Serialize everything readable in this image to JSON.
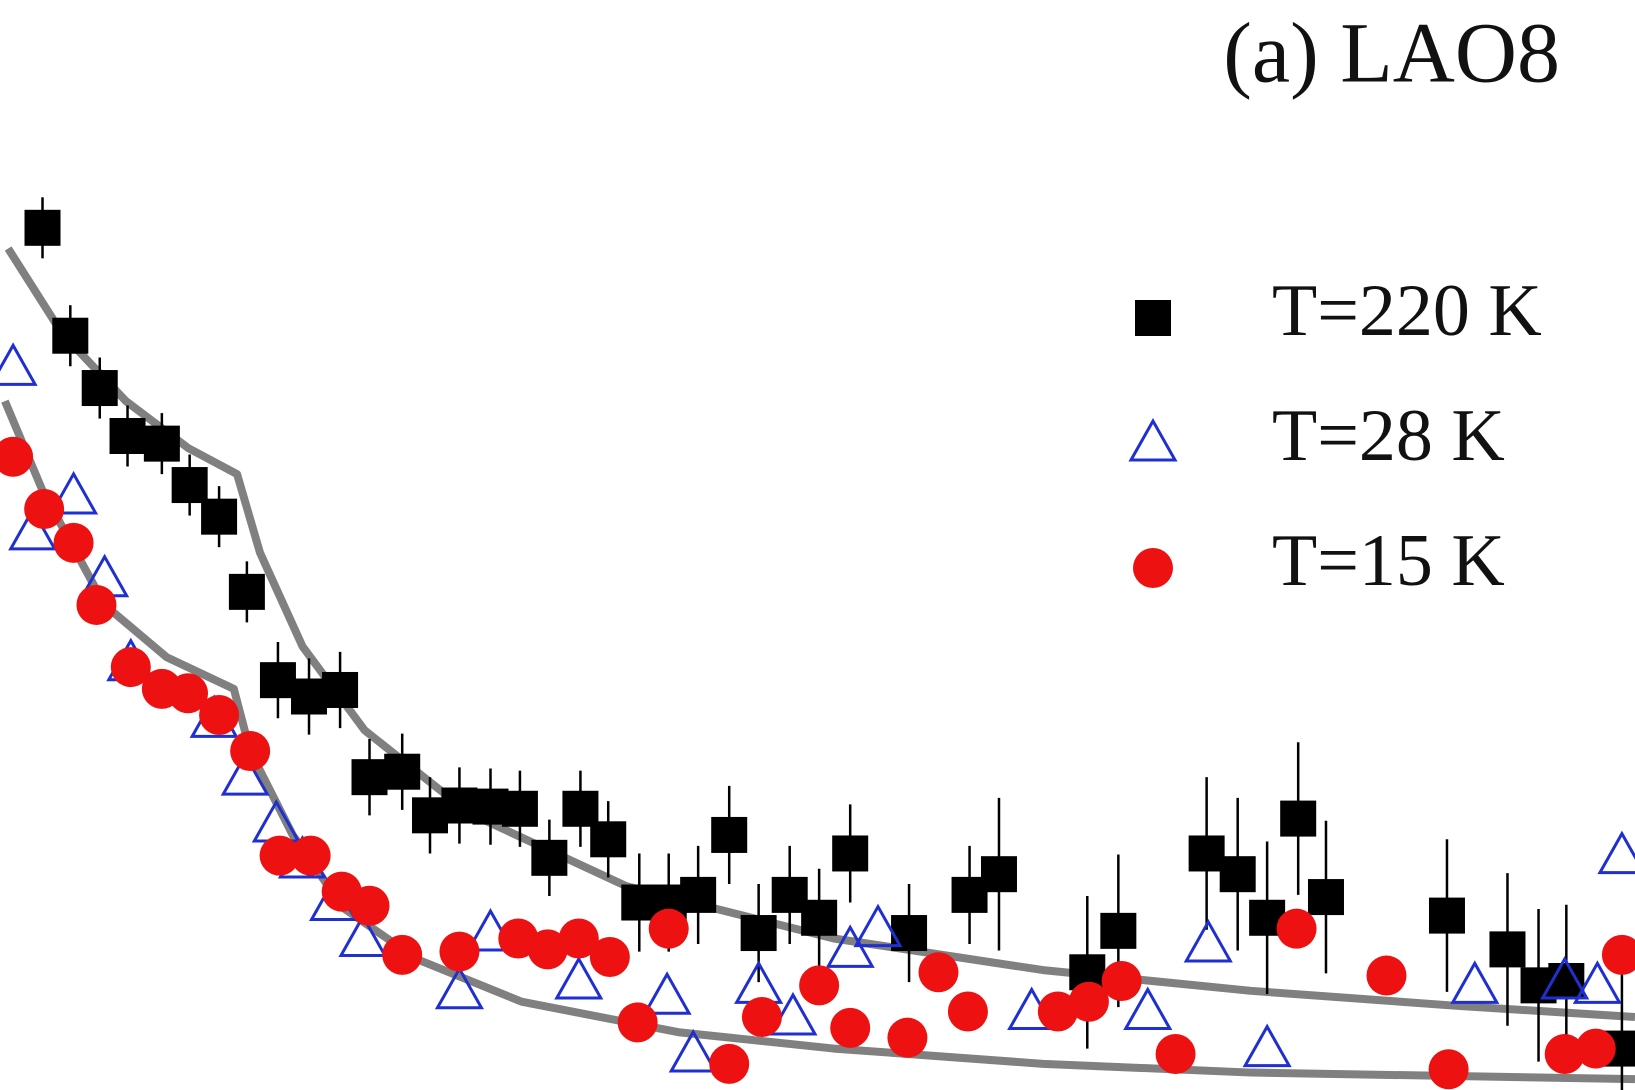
{
  "chart_data": {
    "type": "scatter",
    "title": "(a) LAO8",
    "xlim": [
      0,
      100
    ],
    "ylim": [
      0,
      100
    ],
    "series": [
      {
        "name": "T=220 K",
        "color": "#000000",
        "marker": "square",
        "x": [
          2.6,
          4.3,
          6.1,
          7.8,
          9.9,
          11.6,
          13.4,
          15.1,
          17.0,
          18.9,
          20.8,
          22.6,
          24.6,
          26.3,
          28.1,
          30.0,
          31.8,
          33.6,
          35.5,
          37.2,
          39.1,
          40.9,
          42.7,
          44.6,
          46.4,
          48.3,
          50.1,
          52.0,
          55.6,
          59.3,
          61.1,
          66.5,
          68.4,
          73.8,
          75.7,
          77.5,
          79.4,
          81.1,
          88.5,
          92.2,
          94.1,
          95.8,
          99.2
        ],
        "values": [
          79.1,
          69.2,
          64.4,
          60.0,
          59.3,
          55.5,
          52.6,
          45.7,
          37.6,
          36.1,
          36.7,
          28.7,
          29.2,
          25.2,
          26.1,
          26.0,
          25.8,
          21.3,
          25.8,
          23.0,
          17.2,
          17.2,
          17.9,
          23.4,
          14.4,
          17.9,
          15.8,
          21.7,
          14.4,
          17.9,
          19.8,
          10.8,
          14.6,
          21.7,
          19.8,
          15.8,
          24.9,
          17.7,
          16.0,
          12.9,
          9.6,
          10.0,
          3.8
        ],
        "errors": [
          2.8,
          2.8,
          2.8,
          2.8,
          2.8,
          2.8,
          2.8,
          2.8,
          3.5,
          3.5,
          3.5,
          3.5,
          3.5,
          3.5,
          3.5,
          3.5,
          3.5,
          3.5,
          3.5,
          3.5,
          4.5,
          4.5,
          4.5,
          4.5,
          4.5,
          4.5,
          4.5,
          4.5,
          4.5,
          4.5,
          7,
          7,
          7,
          7,
          7,
          7,
          7,
          7,
          7,
          7,
          7,
          7,
          7
        ]
      },
      {
        "name": "T=28 K",
        "color": "#1f2fd0",
        "marker": "triangle",
        "x": [
          0.8,
          2.0,
          4.5,
          6.4,
          8.0,
          13.1,
          15.0,
          16.9,
          18.5,
          20.4,
          22.2,
          28.1,
          30.0,
          35.4,
          40.8,
          42.4,
          46.4,
          48.5,
          52.0,
          53.7,
          63.1,
          70.2,
          73.9,
          77.5,
          90.2,
          95.7,
          97.7,
          99.2
        ],
        "values": [
          66.3,
          51.2,
          54.5,
          46.9,
          39.2,
          34.0,
          28.7,
          24.4,
          21.1,
          17.2,
          13.9,
          9.1,
          14.4,
          10.0,
          8.6,
          3.3,
          9.6,
          6.7,
          12.9,
          14.8,
          7.2,
          7.2,
          13.4,
          3.8,
          9.6,
          10.0,
          9.6,
          21.5
        ]
      },
      {
        "name": "T=15 K",
        "color": "#ee1111",
        "marker": "circle",
        "x": [
          0.8,
          2.7,
          4.5,
          5.9,
          8.0,
          9.9,
          11.5,
          13.4,
          15.3,
          17.1,
          19.0,
          20.9,
          22.6,
          24.6,
          28.1,
          31.7,
          33.5,
          35.4,
          37.3,
          39.0,
          40.9,
          44.6,
          46.6,
          50.1,
          52.0,
          55.5,
          57.4,
          59.2,
          64.7,
          66.6,
          68.6,
          71.9,
          79.3,
          84.8,
          88.6,
          95.7,
          97.6,
          99.2
        ],
        "values": [
          58.1,
          53.3,
          50.2,
          44.5,
          38.8,
          36.8,
          36.4,
          34.4,
          31.1,
          21.5,
          21.5,
          18.2,
          16.9,
          12.4,
          12.7,
          13.9,
          12.9,
          13.9,
          12.2,
          6.2,
          14.8,
          2.4,
          6.7,
          9.6,
          5.7,
          4.8,
          10.8,
          7.2,
          7.2,
          8.1,
          10.0,
          3.3,
          14.8,
          10.5,
          1.9,
          3.3,
          3.8,
          12.4
        ]
      }
    ],
    "fits": [
      {
        "color": "#808080",
        "x": [
          0.5,
          3.8,
          7.7,
          11.5,
          14.5,
          15.9,
          18.5,
          22.3,
          28.7,
          38.3,
          51.0,
          63.8,
          76.5,
          89.3,
          100
        ],
        "values": [
          77.2,
          69.4,
          63.2,
          58.9,
          56.5,
          49.3,
          40.7,
          33.0,
          25.4,
          18.7,
          13.9,
          11.0,
          9.1,
          7.7,
          6.7
        ]
      },
      {
        "color": "#808080",
        "x": [
          0.3,
          2.6,
          6.4,
          10.2,
          14.3,
          15.3,
          17.9,
          21.0,
          25.5,
          31.9,
          41.5,
          51.0,
          63.8,
          76.5,
          100
        ],
        "values": [
          63.2,
          55.0,
          44.5,
          39.7,
          36.8,
          31.1,
          23.4,
          16.7,
          12.0,
          8.1,
          5.3,
          3.8,
          2.4,
          1.6,
          1.0
        ]
      }
    ],
    "legend": "upper right"
  }
}
